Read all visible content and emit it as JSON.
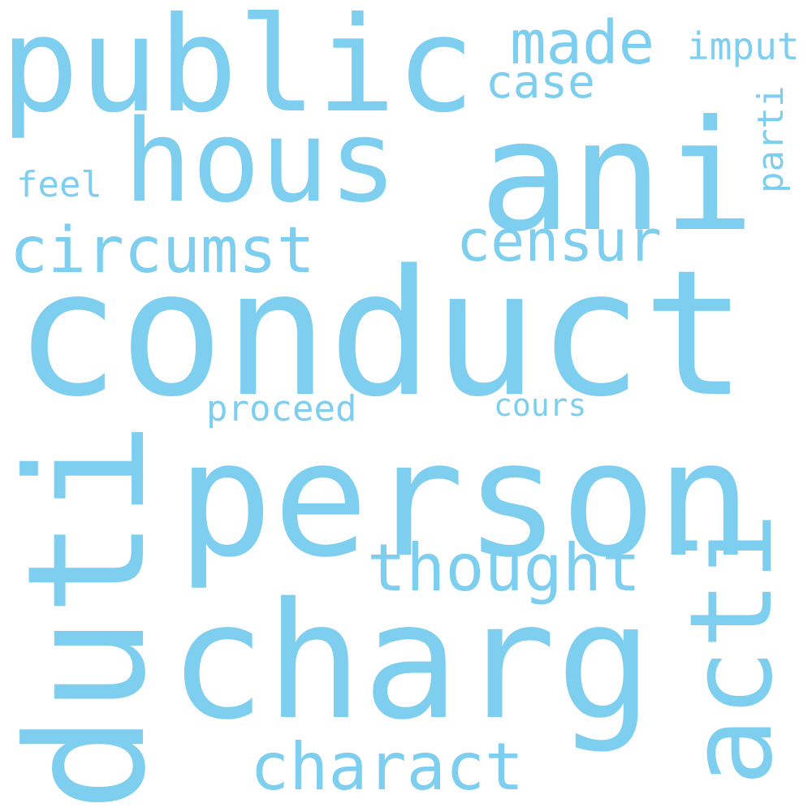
{
  "word_cloud": {
    "color": "#7ecef0",
    "background": "#ffffff",
    "words": {
      "conduct": "conduct",
      "person": "person",
      "charg": "charg",
      "ani": "ani",
      "public": "public",
      "hous": "hous",
      "duti": "duti",
      "acti": "acti",
      "thought": "thought",
      "charact": "charact",
      "circumst": "circumst",
      "censur": "censur",
      "made": "made",
      "case": "case",
      "imput": "imput",
      "parti": "parti",
      "feel": "feel",
      "proceed": "proceed",
      "cours": "cours"
    }
  }
}
